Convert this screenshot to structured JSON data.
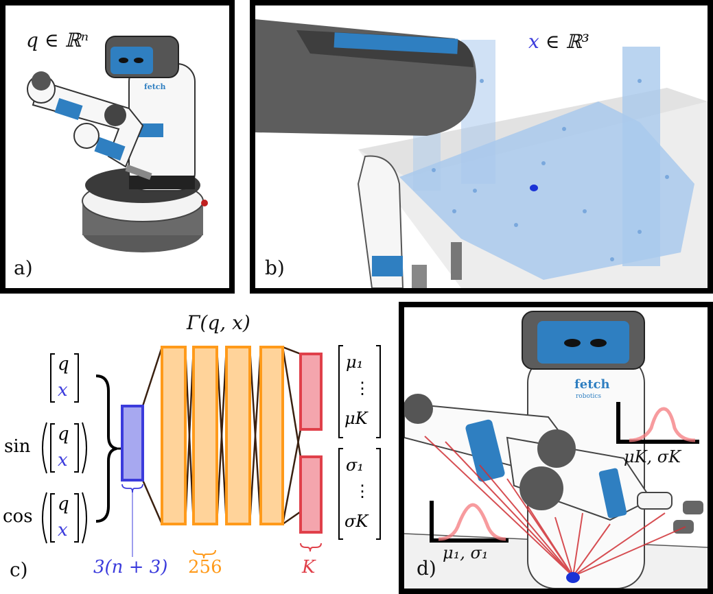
{
  "panel_a": {
    "label": "a)",
    "annotation": "q ∈ ℝⁿ",
    "robot_logo": "fetch"
  },
  "panel_b": {
    "label": "b)",
    "annotation_var": "x",
    "annotation_rest": " ∈ ℝ³"
  },
  "panel_c": {
    "label": "c)",
    "title": "Γ(q, x)",
    "inputs": {
      "vec_top": "q",
      "vec_bottom": "x",
      "sin_label": "sin",
      "cos_label": "cos"
    },
    "input_dim_label": "3(n + 3)",
    "hidden_dim_label": "256",
    "output_dim_label": "K",
    "mu_vector": [
      "μ₁",
      "⋮",
      "μK"
    ],
    "sigma_vector": [
      "σ₁",
      "⋮",
      "σK"
    ]
  },
  "panel_d": {
    "label": "d)",
    "robot_logo": "fetch",
    "robot_logo_sub": "robotics",
    "dist_label_left": "μ₁, σ₁",
    "dist_label_right": "μK, σK"
  },
  "colors": {
    "input_blue": "#3b3bdc",
    "hidden_orange": "#ff9a1a",
    "output_red": "#e0404a",
    "robot_blue": "#2f7fc1",
    "point_cloud": "#a9c9ec",
    "ray_red": "#d03035"
  }
}
